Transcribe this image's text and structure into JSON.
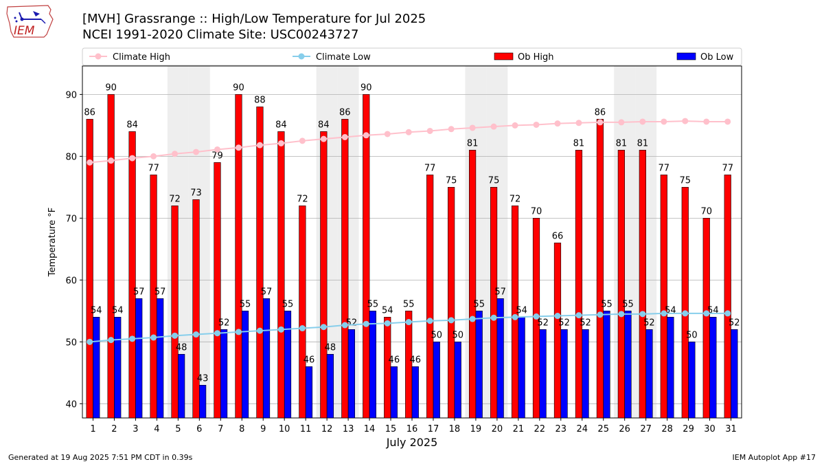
{
  "header": {
    "logo_text": "IEM",
    "title_line1": "[MVH] Grassrange :: High/Low Temperature for Jul 2025",
    "title_line2": "NCEI 1991-2020 Climate Site: USC00243727"
  },
  "footer": {
    "left": "Generated at 19 Aug 2025 7:51 PM CDT in 0.39s",
    "right": "IEM Autoplot App #17"
  },
  "colors": {
    "ob_high": "#ff0000",
    "ob_low": "#0000ff",
    "climate_high": "#ffc0cb",
    "climate_low": "#87ceeb",
    "weekend_shade": "#eeeeee",
    "grid": "#b0b0b0"
  },
  "chart_data": {
    "type": "bar",
    "title": "[MVH] Grassrange :: High/Low Temperature for Jul 2025",
    "xlabel": "July 2025",
    "ylabel": "Temperature °F",
    "ylim": [
      37.7,
      94.6
    ],
    "yticks": [
      40,
      50,
      60,
      70,
      80,
      90
    ],
    "grid": true,
    "legend_position": "top",
    "categories": [
      "1",
      "2",
      "3",
      "4",
      "5",
      "6",
      "7",
      "8",
      "9",
      "10",
      "11",
      "12",
      "13",
      "14",
      "15",
      "16",
      "17",
      "18",
      "19",
      "20",
      "21",
      "22",
      "23",
      "24",
      "25",
      "26",
      "27",
      "28",
      "29",
      "30",
      "31"
    ],
    "shaded_days": [
      5,
      6,
      12,
      13,
      19,
      20,
      26,
      27
    ],
    "series": [
      {
        "name": "Ob High",
        "kind": "bar",
        "color": "#ff0000",
        "values": [
          86,
          90,
          84,
          77,
          72,
          73,
          79,
          90,
          88,
          84,
          72,
          84,
          86,
          90,
          54,
          55,
          77,
          75,
          81,
          75,
          72,
          70,
          66,
          81,
          86,
          81,
          81,
          77,
          75,
          70,
          77
        ]
      },
      {
        "name": "Ob Low",
        "kind": "bar",
        "color": "#0000ff",
        "values": [
          54,
          54,
          57,
          57,
          48,
          43,
          52,
          55,
          57,
          55,
          46,
          48,
          52,
          55,
          46,
          46,
          50,
          50,
          55,
          57,
          54,
          52,
          52,
          52,
          55,
          55,
          52,
          54,
          50,
          54,
          52
        ]
      },
      {
        "name": "Climate High",
        "kind": "line",
        "color": "#ffc0cb",
        "values": [
          79.0,
          79.3,
          79.7,
          80.0,
          80.4,
          80.7,
          81.1,
          81.4,
          81.8,
          82.1,
          82.5,
          82.8,
          83.1,
          83.4,
          83.6,
          83.9,
          84.1,
          84.4,
          84.6,
          84.8,
          85.0,
          85.1,
          85.3,
          85.4,
          85.5,
          85.5,
          85.6,
          85.6,
          85.7,
          85.6,
          85.6
        ]
      },
      {
        "name": "Climate Low",
        "kind": "line",
        "color": "#87ceeb",
        "values": [
          50.0,
          50.3,
          50.5,
          50.7,
          51.0,
          51.2,
          51.4,
          51.6,
          51.8,
          52.0,
          52.2,
          52.4,
          52.7,
          52.9,
          53.0,
          53.2,
          53.4,
          53.5,
          53.7,
          53.9,
          54.0,
          54.1,
          54.2,
          54.3,
          54.4,
          54.5,
          54.5,
          54.6,
          54.6,
          54.6,
          54.6
        ]
      }
    ],
    "legend": [
      "Climate High",
      "Climate Low",
      "Ob High",
      "Ob Low"
    ]
  }
}
